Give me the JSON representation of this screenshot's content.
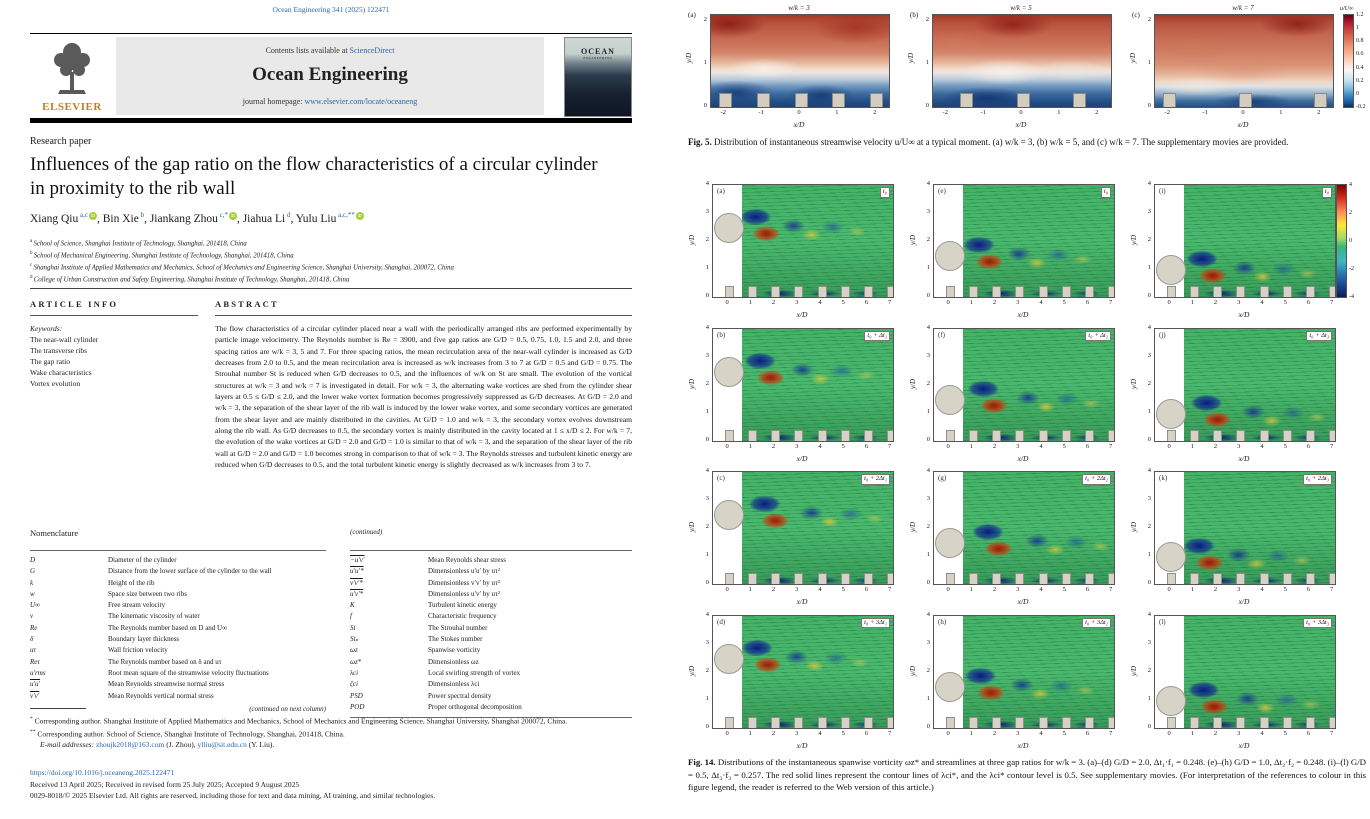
{
  "paper": {
    "journal_ref": "Ocean Engineering 341 (2025) 122471",
    "header": {
      "publisher": "ELSEVIER",
      "contents_line": "Contents lists available at",
      "sciencedirect": "ScienceDirect",
      "journal_name": "Ocean Engineering",
      "homepage_label": "journal homepage:",
      "homepage_url": "www.elsevier.com/locate/oceaneng",
      "cover_title": "OCEAN",
      "cover_subtitle": "ENGINEERING"
    },
    "article_type": "Research paper",
    "title": "Influences of the gap ratio on the flow characteristics of a circular cylinder in proximity to the rib wall",
    "authors": [
      {
        "name": "Xiang Qiu",
        "sup": "a,c",
        "orcid": true
      },
      {
        "name": "Bin Xie",
        "sup": "b",
        "orcid": false
      },
      {
        "name": "Jiankang Zhou",
        "sup": "c,*",
        "orcid": true
      },
      {
        "name": "Jiahua Li",
        "sup": "d",
        "orcid": false
      },
      {
        "name": "Yulu Liu",
        "sup": "a,c,**",
        "orcid": true
      }
    ],
    "affiliations": [
      {
        "sup": "a",
        "text": "School of Science, Shanghai Institute of Technology, Shanghai, 201418, China"
      },
      {
        "sup": "b",
        "text": "School of Mechanical Engineering, Shanghai Institute of Technology, Shanghai, 201418, China"
      },
      {
        "sup": "c",
        "text": "Shanghai Institute of Applied Mathematics and Mechanics, School of Mechanics and Engineering Science, Shanghai University, Shanghai, 200072, China"
      },
      {
        "sup": "d",
        "text": "College of Urban Construction and Safety Engineering, Shanghai Institute of Technology, Shanghai, 201418, China"
      }
    ],
    "article_info": {
      "heading": "ARTICLE INFO",
      "keywords_label": "Keywords:",
      "keywords": [
        "The near-wall cylinder",
        "The transverse ribs",
        "The gap ratio",
        "Wake characteristics",
        "Vortex evolution"
      ]
    },
    "abstract": {
      "heading": "ABSTRACT",
      "text": "The flow characteristics of a circular cylinder placed near a wall with the periodically arranged ribs are performed experimentally by particle image velocimetry. The Reynolds number is Re = 3900, and five gap ratios are G/D = 0.5, 0.75, 1.0, 1.5 and 2.0, and three spacing ratios are w/k = 3, 5 and 7. For three spacing ratios, the mean recirculation area of the near-wall cylinder is increased as G/D decreases from 2.0 to 0.5, and the mean recirculation area is increased as w/k increases from 3 to 7 at G/D = 0.5 and G/D = 0.75. The Strouhal number St is reduced when G/D decreases to 0.5, and the influences of w/k on St are small. The evolution of the vortical structures at w/k = 3 and w/k = 7 is investigated in detail. For w/k = 3, the alternating wake vortices are shed from the cylinder shear layers at 0.5 ≤ G/D ≤ 2.0, and the lower wake vortex formation becomes progressively suppressed as G/D decreases. At G/D = 2.0 and w/k = 3, the separation of the shear layer of the rib wall is induced by the lower wake vortex, and some secondary vortices are generated from the shear layer and are mainly distributed in the cavities. At G/D = 1.0 and w/k = 3, the secondary vortex evolves downstream along the rib wall. As G/D decreases to 0.5, the secondary vortex is mainly distributed in the cavity located at 1 ≤ x/D ≤ 2. For w/k = 7, the evolution of the wake vortices at G/D = 2.0 and G/D = 1.0 is similar to that of w/k = 3, and the separation of the shear layer of the rib wall at G/D = 2.0 and G/D = 1.0 becomes strong in comparison to that of w/k = 3. The Reynolds stresses and turbulent kinetic energy are reduced when G/D decreases to 0.5, and the total turbulent kinetic energy is slightly decreased as w/k increases from 3 to 7."
    },
    "nomenclature": {
      "heading": "Nomenclature",
      "left": [
        {
          "s": "D",
          "d": "Diameter of the cylinder"
        },
        {
          "s": "G",
          "d": "Distance from the lower surface of the cylinder to the wall"
        },
        {
          "s": "k",
          "d": "Height of the rib"
        },
        {
          "s": "w",
          "d": "Space size between two ribs"
        },
        {
          "s": "U∞",
          "d": "Free stream velocity"
        },
        {
          "s": "ν",
          "d": "The kinematic viscosity of water"
        },
        {
          "s": "Re",
          "d": "The Reynolds number based on D and U∞"
        },
        {
          "s": "δ",
          "d": "Boundary layer thickness"
        },
        {
          "s": "uτ",
          "d": "Wall friction velocity"
        },
        {
          "s": "Reτ",
          "d": "The Reynolds number based on δ and uτ"
        },
        {
          "s": "u′rms",
          "d": "Root mean square of the streamwise velocity fluctuations"
        },
        {
          "s": "u′u′",
          "ol": true,
          "d": "Mean Reynolds streamwise normal stress"
        },
        {
          "s": "v′v′",
          "ol": true,
          "d": "Mean Reynolds vertical normal stress"
        }
      ],
      "continued_note": "(continued on next column)",
      "continued_label": "(continued)",
      "right": [
        {
          "s": "−u′v′",
          "ol": true,
          "d": "Mean Reynolds shear stress"
        },
        {
          "s": "u′u′*",
          "ol": true,
          "d": "Dimensionless u′u′ by uτ²"
        },
        {
          "s": "v′v′*",
          "ol": true,
          "d": "Dimensionless v′v′ by uτ²"
        },
        {
          "s": "u′v′*",
          "ol": true,
          "d": "Dimensionless u′v′ by uτ²"
        },
        {
          "s": "K",
          "d": "Turbulent kinetic energy"
        },
        {
          "s": "f",
          "d": "Characteristic frequency"
        },
        {
          "s": "St",
          "d": "The Strouhal number"
        },
        {
          "s": "Stₚ",
          "d": "The Stokes number"
        },
        {
          "s": "ωz",
          "d": "Spanwise vorticity"
        },
        {
          "s": "ωz*",
          "d": "Dimensionless ωz"
        },
        {
          "s": "λci",
          "d": "Local swirling strength of vortex"
        },
        {
          "s": "ζci",
          "d": "Dimensionless λci"
        },
        {
          "s": "PSD",
          "d": "Power spectral density"
        },
        {
          "s": "POD",
          "d": "Proper orthogonal decomposition"
        }
      ]
    },
    "footnotes": {
      "fn1_sup": "*",
      "fn1": "Corresponding author. Shanghai Institute of Applied Mathematics and Mechanics, School of Mechanics and Engineering Science, Shanghai University, Shanghai 200072, China.",
      "fn2_sup": "**",
      "fn2": "Corresponding author. School of Science, Shanghai Institute of Technology, Shanghai, 201418, China.",
      "email_label": "E-mail addresses:",
      "email1": "zhoujk2018@163.com",
      "email1_owner": " (J. Zhou), ",
      "email2": "ylliu@sit.edu.cn",
      "email2_owner": " (Y. Liu)."
    },
    "doi": "https://doi.org/10.1016/j.oceaneng.2025.122471",
    "received": "Received 13 April 2025; Received in revised form 25 July 2025; Accepted 9 August 2025",
    "copyright": "0029-8018/© 2025 Elsevier Ltd. All rights are reserved, including those for text and data mining, AI training, and similar technologies."
  },
  "fig5": {
    "caption_label": "Fig. 5.",
    "caption_text": "Distribution of instantaneous streamwise velocity u/U∞ at a typical moment. (a) w/k = 3, (b) w/k = 5, and (c) w/k = 7. The supplementary movies are provided.",
    "xlabel": "x/D",
    "ylabel": "y/D",
    "x_ticks": [
      "-2",
      "-1",
      "0",
      "1",
      "2"
    ],
    "y_ticks": [
      "2",
      "1",
      "0"
    ],
    "colorbar": {
      "label": "u/U∞",
      "ticks": [
        "1.2",
        "1",
        "0.8",
        "0.6",
        "0.4",
        "0.2",
        "0",
        "-0.2"
      ]
    },
    "panels": [
      {
        "letter": "(a)",
        "title": "w/k = 3",
        "rib_xD": [
          -2,
          -1,
          0,
          1,
          2
        ]
      },
      {
        "letter": "(b)",
        "title": "w/k = 5",
        "rib_xD": [
          -1.5,
          0,
          1.5
        ]
      },
      {
        "letter": "(c)",
        "title": "w/k = 7",
        "rib_xD": [
          -2,
          0,
          2
        ]
      }
    ]
  },
  "fig14": {
    "caption_label": "Fig. 14.",
    "caption_text": "Distributions of the instantaneous spanwise vorticity ωz* and streamlines at three gap ratios for w/k = 3. (a)–(d) G/D = 2.0, Δt₁·f₁ = 0.248. (e)–(h) G/D = 1.0, Δt₂·f₂ = 0.248. (i)–(l) G/D = 0.5, Δt₃·f₃ = 0.257. The red solid lines represent the contour lines of λci*, and the λci* contour level is 0.5. See supplementary movies. (For interpretation of the references to colour in this figure legend, the reader is referred to the Web version of this article.)",
    "xlabel": "x/D",
    "ylabel": "y/D",
    "x_ticks": [
      "0",
      "1",
      "2",
      "3",
      "4",
      "5",
      "6",
      "7"
    ],
    "y_ticks": [
      "4",
      "3",
      "2",
      "1",
      "0"
    ],
    "rib_xD": [
      0,
      1,
      2,
      3,
      4,
      5,
      6,
      7
    ],
    "colorbar": {
      "ticks": [
        "4",
        "2",
        "0",
        "-2",
        "-4"
      ]
    },
    "columns": [
      {
        "gap_ratio": "G/D = 2.0",
        "cylinder_yD": 2.5,
        "letters": [
          "(a)",
          "(b)",
          "(c)",
          "(d)"
        ],
        "times": [
          "t₀",
          "t₀ + Δt₁",
          "t₀ + 2Δt₁",
          "t₀ + 3Δt₁"
        ]
      },
      {
        "gap_ratio": "G/D = 1.0",
        "cylinder_yD": 1.5,
        "letters": [
          "(e)",
          "(f)",
          "(g)",
          "(h)"
        ],
        "times": [
          "t₀",
          "t₀ + Δt₂",
          "t₀ + 2Δt₂",
          "t₀ + 3Δt₂"
        ]
      },
      {
        "gap_ratio": "G/D = 0.5",
        "cylinder_yD": 1.0,
        "letters": [
          "(i)",
          "(j)",
          "(k)",
          "(l)"
        ],
        "times": [
          "t₀",
          "t₀ + Δt₃",
          "t₀ + 2Δt₃",
          "t₀ + 3Δt₃"
        ]
      }
    ]
  },
  "chart_data": [
    {
      "type": "heatmap",
      "figure": "Fig. 5",
      "title": "Instantaneous streamwise velocity u/U∞",
      "panels": [
        "w/k = 3",
        "w/k = 5",
        "w/k = 7"
      ],
      "xlabel": "x/D",
      "ylabel": "y/D",
      "xlim": [
        -2,
        2
      ],
      "ylim": [
        0,
        2
      ],
      "colorbar_label": "u/U∞",
      "colorbar_range": [
        -0.2,
        1.2
      ],
      "colormap": "red-white-blue (high velocity red on top, low/negative blue near wall)"
    },
    {
      "type": "heatmap",
      "figure": "Fig. 14",
      "title": "Instantaneous spanwise vorticity ωz* with streamlines, w/k = 3",
      "grid": "4 rows (time instants) x 3 columns (G/D = 2.0, 1.0, 0.5)",
      "xlabel": "x/D",
      "ylabel": "y/D",
      "xlim": [
        0,
        7
      ],
      "ylim": [
        0,
        4
      ],
      "colorbar_range": [
        -4,
        4
      ],
      "colormap": "jet (blue negative vorticity, red positive vorticity, green background)"
    }
  ]
}
